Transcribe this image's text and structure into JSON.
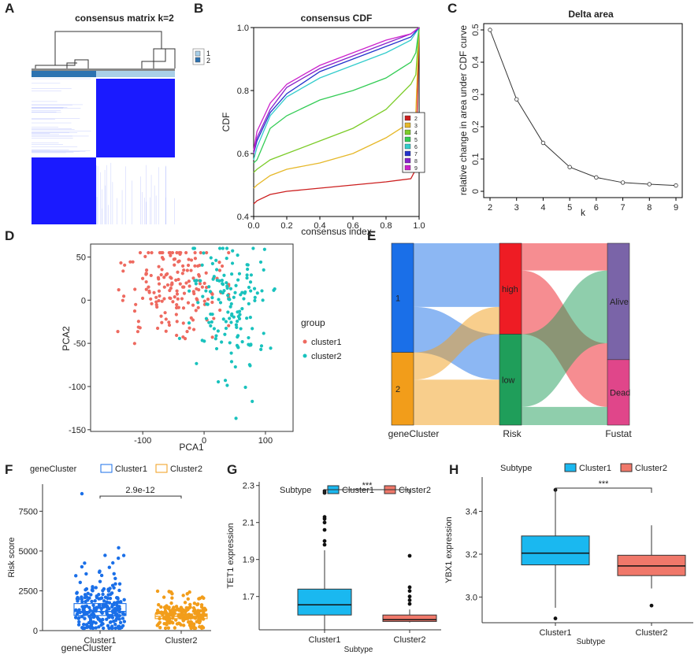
{
  "panels": {
    "A": {
      "letter": "A",
      "title": "consensus matrix k=2",
      "legend": [
        "1",
        "2"
      ],
      "colors": {
        "c1": "#a9cfe8",
        "c2": "#2c72b1",
        "block": "#1a1aff"
      }
    },
    "B": {
      "letter": "B"
    },
    "C": {
      "letter": "C"
    },
    "D": {
      "letter": "D"
    },
    "E": {
      "letter": "E"
    },
    "F": {
      "letter": "F"
    },
    "G": {
      "letter": "G"
    },
    "H": {
      "letter": "H"
    }
  },
  "chart_data": [
    {
      "id": "B",
      "type": "line",
      "title": "consensus CDF",
      "xlabel": "consensus index",
      "ylabel": "CDF",
      "xlim": [
        0,
        1
      ],
      "ylim": [
        0.4,
        1.0
      ],
      "xticks": [
        "0.0",
        "0.2",
        "0.4",
        "0.6",
        "0.8",
        "1.0"
      ],
      "yticks": [
        "0.4",
        "0.6",
        "0.8",
        "1.0"
      ],
      "legend": [
        "2",
        "3",
        "4",
        "5",
        "6",
        "7",
        "8",
        "9"
      ],
      "series": [
        {
          "name": "2",
          "color": "#cc1f1f",
          "x": [
            0,
            0.02,
            0.1,
            0.2,
            0.4,
            0.6,
            0.8,
            0.95,
            0.98,
            1.0
          ],
          "y": [
            0.44,
            0.45,
            0.47,
            0.48,
            0.49,
            0.5,
            0.51,
            0.52,
            0.55,
            1.0
          ]
        },
        {
          "name": "3",
          "color": "#e6b829",
          "x": [
            0,
            0.02,
            0.1,
            0.2,
            0.4,
            0.6,
            0.8,
            0.95,
            0.98,
            1.0
          ],
          "y": [
            0.49,
            0.5,
            0.53,
            0.55,
            0.57,
            0.6,
            0.65,
            0.7,
            0.73,
            1.0
          ]
        },
        {
          "name": "4",
          "color": "#7ccc29",
          "x": [
            0,
            0.02,
            0.1,
            0.2,
            0.4,
            0.6,
            0.8,
            0.95,
            0.98,
            1.0
          ],
          "y": [
            0.54,
            0.55,
            0.58,
            0.6,
            0.64,
            0.68,
            0.74,
            0.82,
            0.85,
            1.0
          ]
        },
        {
          "name": "5",
          "color": "#33cc55",
          "x": [
            0,
            0.02,
            0.1,
            0.2,
            0.4,
            0.6,
            0.8,
            0.95,
            0.98,
            1.0
          ],
          "y": [
            0.57,
            0.58,
            0.68,
            0.72,
            0.77,
            0.8,
            0.84,
            0.89,
            0.92,
            1.0
          ]
        },
        {
          "name": "6",
          "color": "#33cccc",
          "x": [
            0,
            0.02,
            0.1,
            0.2,
            0.4,
            0.6,
            0.8,
            0.95,
            1.0
          ],
          "y": [
            0.58,
            0.62,
            0.72,
            0.78,
            0.84,
            0.88,
            0.92,
            0.96,
            1.0
          ]
        },
        {
          "name": "7",
          "color": "#2233cc",
          "x": [
            0,
            0.02,
            0.1,
            0.2,
            0.4,
            0.6,
            0.8,
            0.95,
            1.0
          ],
          "y": [
            0.6,
            0.64,
            0.73,
            0.79,
            0.86,
            0.9,
            0.94,
            0.97,
            1.0
          ]
        },
        {
          "name": "8",
          "color": "#8822cc",
          "x": [
            0,
            0.02,
            0.1,
            0.2,
            0.4,
            0.6,
            0.8,
            0.95,
            1.0
          ],
          "y": [
            0.6,
            0.65,
            0.74,
            0.81,
            0.87,
            0.91,
            0.95,
            0.98,
            1.0
          ]
        },
        {
          "name": "9",
          "color": "#cc22cc",
          "x": [
            0,
            0.02,
            0.1,
            0.2,
            0.4,
            0.6,
            0.8,
            0.95,
            1.0
          ],
          "y": [
            0.61,
            0.67,
            0.76,
            0.82,
            0.88,
            0.92,
            0.96,
            0.98,
            1.0
          ]
        }
      ]
    },
    {
      "id": "C",
      "type": "line",
      "title": "Delta area",
      "xlabel": "k",
      "ylabel": "relative change in area under CDF curve",
      "xlim": [
        2,
        9
      ],
      "ylim": [
        0,
        0.5
      ],
      "xticks": [
        "2",
        "3",
        "4",
        "5",
        "6",
        "7",
        "8",
        "9"
      ],
      "yticks": [
        "0",
        "0.1",
        "0.2",
        "0.3",
        "0.4",
        "0.5"
      ],
      "x": [
        2,
        3,
        4,
        5,
        6,
        7,
        8,
        9
      ],
      "y": [
        0.5,
        0.285,
        0.15,
        0.075,
        0.043,
        0.027,
        0.022,
        0.018
      ]
    },
    {
      "id": "D",
      "type": "scatter",
      "xlabel": "PCA1",
      "ylabel": "PCA2",
      "xlim": [
        -185,
        145
      ],
      "ylim": [
        -152,
        65
      ],
      "xticks": [
        "-100",
        "0",
        "100"
      ],
      "yticks": [
        "50",
        "0",
        "-50",
        "-100",
        "-150"
      ],
      "legend_title": "group",
      "legend": [
        "cluster1",
        "cluster2"
      ],
      "colors": {
        "cluster1": "#ee6a60",
        "cluster2": "#19c2bd"
      },
      "n": {
        "cluster1": 180,
        "cluster2": 150
      }
    },
    {
      "id": "E",
      "type": "sankey",
      "axes": [
        "geneCluster",
        "Risk",
        "Fustat"
      ],
      "nodes": {
        "geneCluster": [
          "1",
          "2"
        ],
        "Risk": [
          "high",
          "low"
        ],
        "Fustat": [
          "Alive",
          "Dead"
        ]
      },
      "flows_gene_to_risk": [
        {
          "from": "1",
          "to": "high",
          "value": 0.35
        },
        {
          "from": "1",
          "to": "low",
          "value": 0.25
        },
        {
          "from": "2",
          "to": "high",
          "value": 0.15
        },
        {
          "from": "2",
          "to": "low",
          "value": 0.25
        }
      ],
      "flows_risk_to_fustat": [
        {
          "from": "high",
          "to": "Alive",
          "value": 0.15
        },
        {
          "from": "high",
          "to": "Dead",
          "value": 0.35
        },
        {
          "from": "low",
          "to": "Alive",
          "value": 0.4
        },
        {
          "from": "low",
          "to": "Dead",
          "value": 0.1
        }
      ],
      "colors": {
        "1": "#1a6fe8",
        "2": "#f29d1a",
        "high": "#ee1c24",
        "low": "#1f9e5a",
        "Alive": "#7a64a8",
        "Dead": "#e0468a"
      }
    },
    {
      "id": "F",
      "type": "box",
      "legend_title": "geneCluster",
      "legend": [
        "Cluster1",
        "Cluster2"
      ],
      "ylabel": "Risk score",
      "xlabel": "geneCluster",
      "categories": [
        "Cluster1",
        "Cluster2"
      ],
      "ylim": [
        0,
        9200
      ],
      "yticks": [
        "0",
        "2500",
        "5000",
        "7500"
      ],
      "pvalue": "2.9e-12",
      "colors": {
        "Cluster1": "#1a6fe8",
        "Cluster2": "#f29d1a"
      },
      "boxes": [
        {
          "q1": 950,
          "median": 1200,
          "q3": 1700
        },
        {
          "q1": 750,
          "median": 900,
          "q3": 1050
        }
      ]
    },
    {
      "id": "G",
      "type": "box",
      "legend_title": "Subtype",
      "legend": [
        "Cluster1",
        "Cluster2"
      ],
      "ylabel": "TET1 expression",
      "xlabel": "Subtype",
      "categories": [
        "Cluster1",
        "Cluster2"
      ],
      "ylim": [
        1.52,
        2.32
      ],
      "yticks": [
        "1.7",
        "1.9",
        "2.1",
        "2.3"
      ],
      "sig": "***",
      "colors": {
        "Cluster1": "#1ab8f0",
        "Cluster2": "#f0786a"
      },
      "boxes": [
        {
          "min": 1.52,
          "q1": 1.6,
          "median": 1.655,
          "q3": 1.74,
          "max": 1.95,
          "outliers": [
            2.27,
            2.26,
            2.13,
            2.12,
            2.1,
            2.06,
            2.0,
            1.98
          ]
        },
        {
          "min": 1.56,
          "q1": 1.565,
          "median": 1.575,
          "q3": 1.6,
          "max": 1.63,
          "outliers": [
            1.92,
            1.75,
            1.73,
            1.7,
            1.68,
            1.66
          ]
        }
      ]
    },
    {
      "id": "H",
      "type": "box",
      "legend_title": "Subtype",
      "legend": [
        "Cluster1",
        "Cluster2"
      ],
      "ylabel": "YBX1 expression",
      "xlabel": "Subtype",
      "categories": [
        "Cluster1",
        "Cluster2"
      ],
      "ylim": [
        2.88,
        3.56
      ],
      "yticks": [
        "3.0",
        "3.2",
        "3.4"
      ],
      "sig": "***",
      "colors": {
        "Cluster1": "#1ab8f0",
        "Cluster2": "#f0786a"
      },
      "boxes": [
        {
          "min": 2.95,
          "q1": 3.15,
          "median": 3.205,
          "q3": 3.285,
          "max": 3.49,
          "outliers": [
            3.5,
            2.9
          ]
        },
        {
          "min": 3.04,
          "q1": 3.1,
          "median": 3.145,
          "q3": 3.195,
          "max": 3.335,
          "outliers": [
            2.96
          ]
        }
      ]
    }
  ]
}
